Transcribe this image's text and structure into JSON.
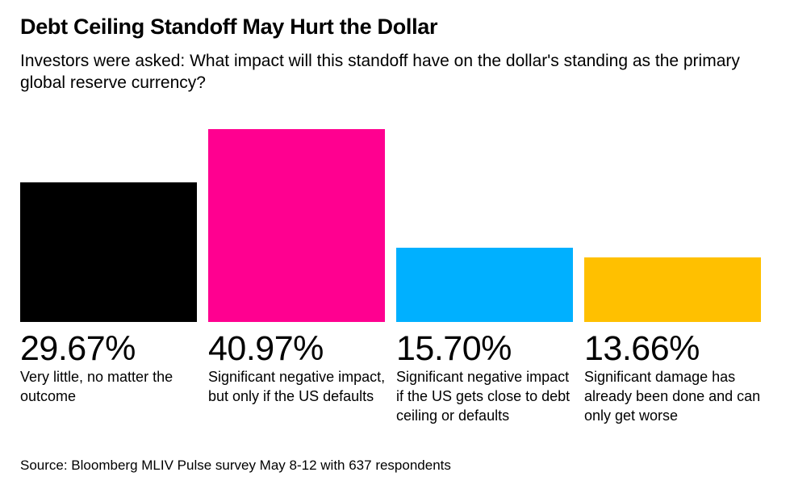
{
  "chart_data": {
    "type": "bar",
    "title": "Debt Ceiling Standoff May Hurt the Dollar",
    "subtitle": "Investors were asked: What impact will this standoff have on the dollar's standing as the primary global reserve currency?",
    "categories": [
      "Very little, no matter the outcome",
      "Significant negative impact, but only if the US defaults",
      "Significant negative impact if the US gets close to debt ceiling or defaults",
      "Significant damage has already been done and can only get worse"
    ],
    "values": [
      29.67,
      40.97,
      15.7,
      13.66
    ],
    "value_labels": [
      "29.67%",
      "40.97%",
      "15.70%",
      "13.66%"
    ],
    "colors": [
      "#000000",
      "#ff0090",
      "#00b0ff",
      "#ffc000"
    ],
    "source": "Source: Bloomberg MLIV Pulse survey May 8-12 with 637 respondents"
  }
}
